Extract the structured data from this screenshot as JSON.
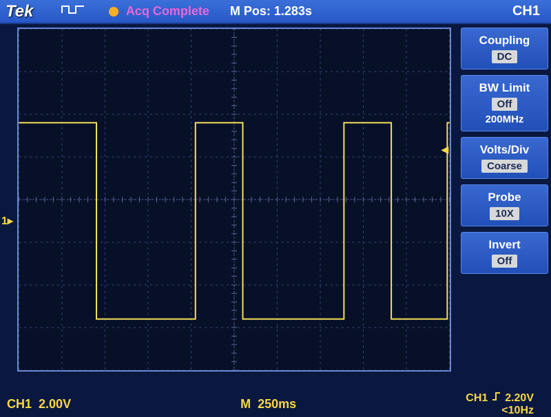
{
  "top": {
    "logo": "Tek",
    "acq_status": "Acq Complete",
    "mpos_label": "M Pos:",
    "mpos_value": "1.283s",
    "channel": "CH1"
  },
  "menu": {
    "coupling": {
      "label": "Coupling",
      "value": "DC"
    },
    "bwlimit": {
      "label": "BW Limit",
      "value": "Off",
      "sub": "200MHz"
    },
    "voltsdiv": {
      "label": "Volts/Div",
      "value": "Coarse"
    },
    "probe": {
      "label": "Probe",
      "value": "10X"
    },
    "invert": {
      "label": "Invert",
      "value": "Off"
    }
  },
  "bottom": {
    "ch_label": "CH1",
    "ch_scale": "2.00V",
    "time_label": "M",
    "time_scale": "250ms",
    "trig_ch": "CH1",
    "trig_level": "2.20V",
    "trig_freq": "<10Hz"
  },
  "scope": {
    "grid": {
      "cols": 10,
      "rows": 8,
      "minor_ticks": 5,
      "bg_color": "#081028",
      "grid_color": "#384878",
      "center_color": "#586898",
      "trace_color": "#f8e058",
      "trace_width": 2
    },
    "ch1_ground_div": 4.5,
    "trig_level_div": 2.8,
    "waveform": {
      "type": "square",
      "high_div": 2.2,
      "low_div": 6.8,
      "edges_x_div": [
        1.8,
        4.1,
        5.2,
        7.55,
        8.65,
        9.95
      ],
      "start_level": "high"
    }
  },
  "colors": {
    "trace": "#f8e058",
    "menu_bg": "#2858c8",
    "text_yellow": "#f8d848",
    "text_magenta": "#e868d8"
  }
}
